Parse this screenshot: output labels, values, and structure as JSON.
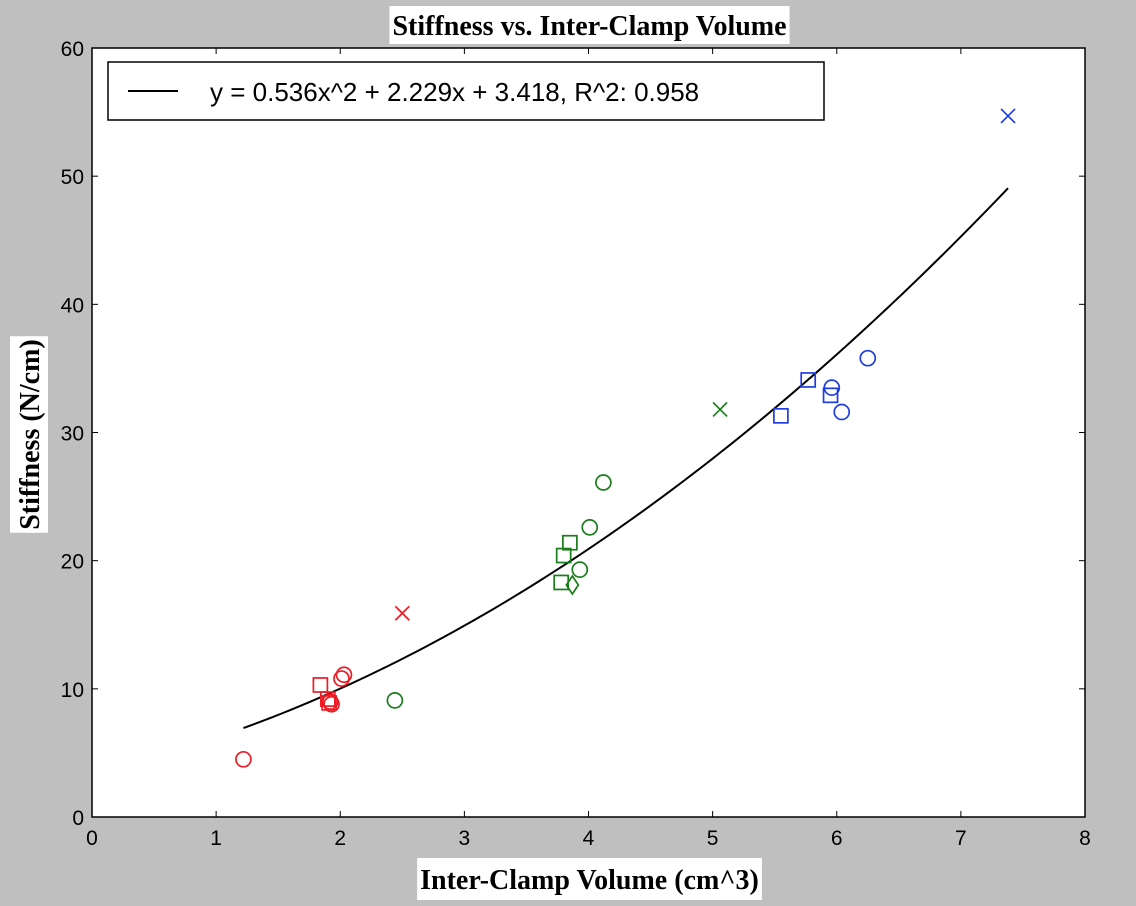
{
  "chart_data": {
    "type": "scatter",
    "title": "Stiffness vs. Inter-Clamp Volume",
    "xlabel": "Inter-Clamp Volume (cm^3)",
    "ylabel": "Stiffness (N/cm)",
    "xlim": [
      0,
      8
    ],
    "ylim": [
      0,
      60
    ],
    "xticks": [
      0,
      1,
      2,
      3,
      4,
      5,
      6,
      7,
      8
    ],
    "yticks": [
      0,
      10,
      20,
      30,
      40,
      50,
      60
    ],
    "grid": false,
    "legend_position": "top-left",
    "colors": {
      "red": "#ee1c25",
      "green": "#1a7d1a",
      "blue": "#1f3de0",
      "fit": "#000000"
    },
    "fit": {
      "label": "y = 0.536x^2 + 2.229x + 3.418, R^2: 0.958",
      "coefficients": [
        0.536,
        2.229,
        3.418
      ],
      "x_range": [
        1.22,
        7.38
      ]
    },
    "points": [
      {
        "x": 1.22,
        "y": 4.5,
        "marker": "circle",
        "color": "red"
      },
      {
        "x": 1.84,
        "y": 10.3,
        "marker": "square",
        "color": "red"
      },
      {
        "x": 1.9,
        "y": 9.2,
        "marker": "square",
        "color": "red"
      },
      {
        "x": 1.91,
        "y": 8.9,
        "marker": "square",
        "color": "red"
      },
      {
        "x": 1.92,
        "y": 9.0,
        "marker": "circle",
        "color": "red"
      },
      {
        "x": 1.93,
        "y": 8.8,
        "marker": "circle",
        "color": "red"
      },
      {
        "x": 2.01,
        "y": 10.8,
        "marker": "circle",
        "color": "red"
      },
      {
        "x": 2.03,
        "y": 11.1,
        "marker": "circle",
        "color": "red"
      },
      {
        "x": 2.5,
        "y": 15.9,
        "marker": "x",
        "color": "red"
      },
      {
        "x": 2.44,
        "y": 9.1,
        "marker": "circle",
        "color": "green"
      },
      {
        "x": 3.78,
        "y": 18.3,
        "marker": "square",
        "color": "green"
      },
      {
        "x": 3.8,
        "y": 20.4,
        "marker": "square",
        "color": "green"
      },
      {
        "x": 3.85,
        "y": 21.4,
        "marker": "square",
        "color": "green"
      },
      {
        "x": 3.87,
        "y": 18.1,
        "marker": "diamond",
        "color": "green"
      },
      {
        "x": 3.93,
        "y": 19.3,
        "marker": "circle",
        "color": "green"
      },
      {
        "x": 4.01,
        "y": 22.6,
        "marker": "circle",
        "color": "green"
      },
      {
        "x": 4.12,
        "y": 26.1,
        "marker": "circle",
        "color": "green"
      },
      {
        "x": 5.06,
        "y": 31.8,
        "marker": "x",
        "color": "green"
      },
      {
        "x": 5.55,
        "y": 31.3,
        "marker": "square",
        "color": "blue"
      },
      {
        "x": 5.77,
        "y": 34.1,
        "marker": "square",
        "color": "blue"
      },
      {
        "x": 5.95,
        "y": 32.9,
        "marker": "square",
        "color": "blue"
      },
      {
        "x": 5.96,
        "y": 33.5,
        "marker": "circle",
        "color": "blue"
      },
      {
        "x": 6.04,
        "y": 31.6,
        "marker": "circle",
        "color": "blue"
      },
      {
        "x": 6.25,
        "y": 35.8,
        "marker": "circle",
        "color": "blue"
      },
      {
        "x": 7.38,
        "y": 54.7,
        "marker": "x",
        "color": "blue"
      }
    ]
  }
}
